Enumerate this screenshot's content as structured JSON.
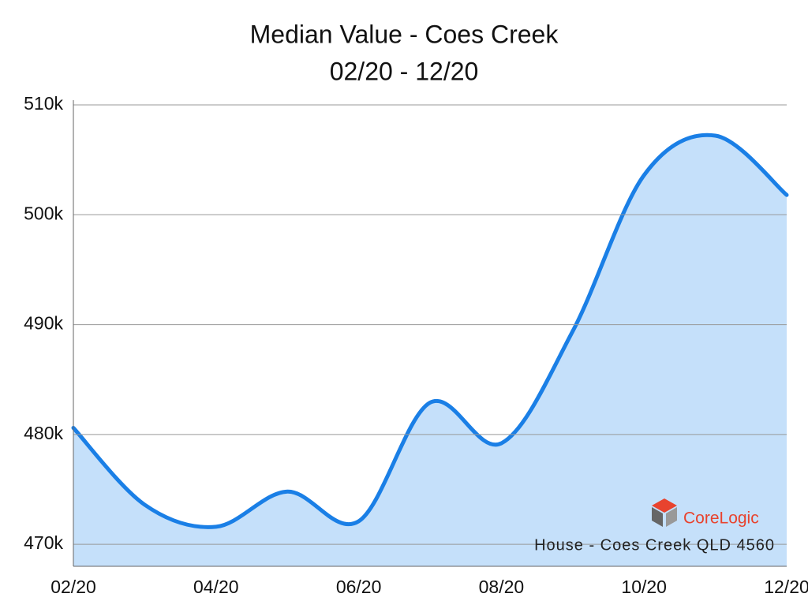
{
  "chart_data": {
    "type": "line",
    "title": "Median Value - Coes Creek",
    "subtitle": "02/20 - 12/20",
    "categories": [
      "02/20",
      null,
      "04/20",
      null,
      "06/20",
      null,
      "08/20",
      null,
      "10/20",
      null,
      "12/20"
    ],
    "series": [
      {
        "name": "House - Coes Creek QLD 4560",
        "color": "#1a7fe6",
        "values": [
          480600,
          473600,
          471600,
          474800,
          472100,
          482900,
          479200,
          489400,
          503600,
          507200,
          501800
        ]
      }
    ],
    "area_color": "#c5e0fa",
    "ylim": [
      468000,
      510000
    ],
    "yticks": [
      {
        "value": 470000,
        "label": "470k"
      },
      {
        "value": 480000,
        "label": "480k"
      },
      {
        "value": 490000,
        "label": "490k"
      },
      {
        "value": 500000,
        "label": "500k"
      },
      {
        "value": 510000,
        "label": "510k"
      }
    ],
    "grid": true,
    "logo": "CoreLogic"
  }
}
